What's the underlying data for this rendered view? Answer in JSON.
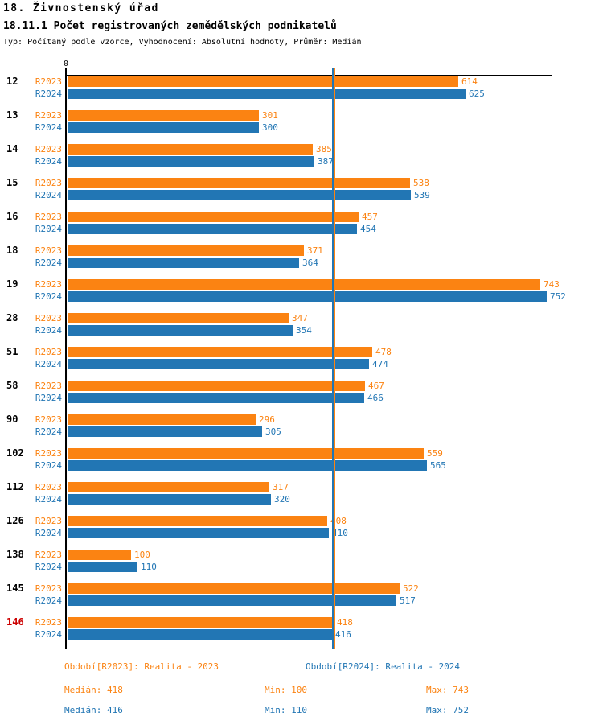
{
  "header": {
    "title1": "18. Živnostenský úřad",
    "title2": "18.11.1 Počet registrovaných zemědělských podnikatelů",
    "meta": "Typ: Počítaný podle vzorce, Vyhodnocení: Absolutní hodnoty, Průměr: Medián"
  },
  "colors": {
    "r2023": "#FB8312",
    "r2024": "#2276B4",
    "highlight": "#CC0000",
    "axis": "#000000"
  },
  "chart_data": {
    "type": "bar",
    "orientation": "horizontal",
    "title": "18.11.1 Počet registrovaných zemědělských podnikatelů",
    "x_axis": {
      "origin_label": "0",
      "max": 760,
      "grid": false
    },
    "categories": [
      "12",
      "13",
      "14",
      "15",
      "16",
      "18",
      "19",
      "28",
      "51",
      "58",
      "90",
      "102",
      "112",
      "126",
      "138",
      "145",
      "146"
    ],
    "highlighted_categories": [
      "146"
    ],
    "series": [
      {
        "name": "R2023",
        "color": "#FB8312",
        "values": [
          614,
          301,
          385,
          538,
          457,
          371,
          743,
          347,
          478,
          467,
          296,
          559,
          317,
          408,
          100,
          522,
          418
        ]
      },
      {
        "name": "R2024",
        "color": "#2276B4",
        "values": [
          625,
          300,
          387,
          539,
          454,
          364,
          752,
          354,
          474,
          466,
          305,
          565,
          320,
          410,
          110,
          517,
          416
        ]
      }
    ],
    "median_lines": [
      {
        "series": "R2024",
        "value": 416,
        "color": "#2276B4"
      },
      {
        "series": "R2023",
        "value": 418,
        "color": "#FB8312"
      }
    ],
    "legend_position": "bottom"
  },
  "axis": {
    "origin_label": "0"
  },
  "legend": {
    "r2023": "Období[R2023]: Realita - 2023",
    "r2024": "Období[R2024]: Realita - 2024"
  },
  "stats": {
    "r2023": {
      "median": "Medián: 418",
      "min": "Min: 100",
      "max": "Max: 743"
    },
    "r2024": {
      "median": "Medián: 416",
      "min": "Min: 110",
      "max": "Max: 752"
    }
  }
}
